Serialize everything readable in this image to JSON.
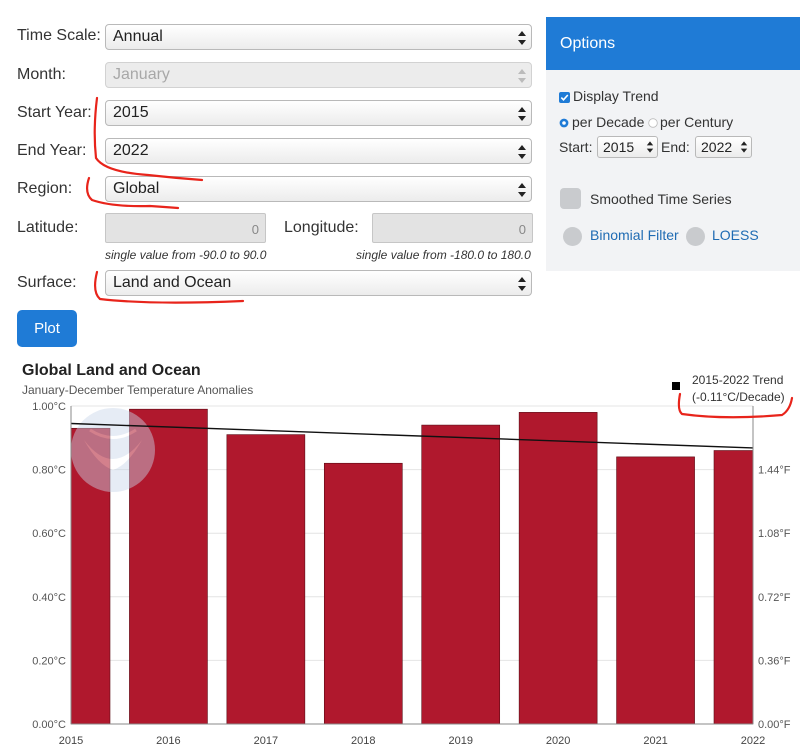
{
  "form": {
    "time_scale": {
      "label": "Time Scale:",
      "value": "Annual"
    },
    "month": {
      "label": "Month:",
      "value": "January"
    },
    "start_year": {
      "label": "Start Year:",
      "value": "2015"
    },
    "end_year": {
      "label": "End Year:",
      "value": "2022"
    },
    "region": {
      "label": "Region:",
      "value": "Global"
    },
    "latitude": {
      "label": "Latitude:",
      "value": "0",
      "hint": "single value from -90.0 to 90.0"
    },
    "longitude": {
      "label": "Longitude:",
      "value": "0",
      "hint": "single value from -180.0 to 180.0"
    },
    "surface": {
      "label": "Surface:",
      "value": "Land and Ocean"
    },
    "plot_label": "Plot"
  },
  "options": {
    "title": "Options",
    "display_trend": "Display Trend",
    "display_trend_checked": true,
    "per_decade": "per Decade",
    "per_century": "per Century",
    "selected_unit": "per Decade",
    "start_label": "Start:",
    "start_value": "2015",
    "end_label": "End:",
    "end_value": "2022",
    "smoothed": "Smoothed Time Series",
    "binomial": "Binomial Filter",
    "loess": "LOESS"
  },
  "chart": {
    "title": "Global Land and Ocean",
    "subtitle": "January-December Temperature Anomalies",
    "legend_line1": "2015-2022 Trend",
    "legend_line2": "(-0.11°C/Decade)"
  },
  "chart_data": {
    "type": "bar",
    "title": "Global Land and Ocean",
    "subtitle": "January-December Temperature Anomalies",
    "categories": [
      "2015",
      "2016",
      "2017",
      "2018",
      "2019",
      "2020",
      "2021",
      "2022"
    ],
    "series": [
      {
        "values": [
          0.93,
          0.99,
          0.91,
          0.82,
          0.94,
          0.98,
          0.84,
          0.86
        ]
      }
    ],
    "trend": {
      "name": "2015-2022 Trend",
      "label": "(-0.11°C/Decade)",
      "start": 0.945,
      "end": 0.868
    },
    "ylim": [
      0,
      1.0
    ],
    "left_ticks": [
      "0.00°C",
      "0.20°C",
      "0.40°C",
      "0.60°C",
      "0.80°C",
      "1.00°C"
    ],
    "right_ticks": [
      "0.00°F",
      "0.36°F",
      "0.72°F",
      "1.08°F",
      "1.44°F"
    ],
    "right_tick_values": [
      0,
      0.36,
      0.72,
      1.08,
      1.44
    ],
    "bar_color": "#b0182d",
    "legend_position": "top-right"
  },
  "colors": {
    "accent": "#1f7bd6",
    "annotation": "#e8241b"
  }
}
